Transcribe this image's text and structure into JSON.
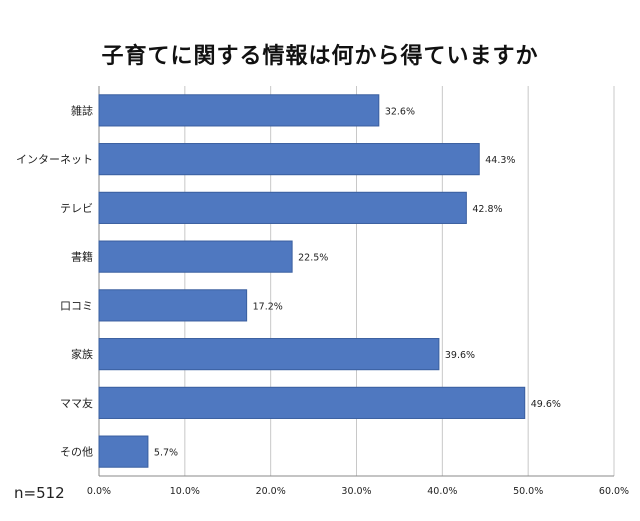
{
  "chart_data": {
    "type": "bar",
    "orientation": "horizontal",
    "title": "子育てに関する情報は何から得ていますか",
    "categories": [
      "雑誌",
      "インターネット",
      "テレビ",
      "書籍",
      "口コミ",
      "家族",
      "ママ友",
      "その他"
    ],
    "values": [
      32.6,
      44.3,
      42.8,
      22.5,
      17.2,
      39.6,
      49.6,
      5.7
    ],
    "value_labels": [
      "32.6%",
      "44.3%",
      "42.8%",
      "22.5%",
      "17.2%",
      "39.6%",
      "49.6%",
      "5.7%"
    ],
    "xlim": [
      0,
      60
    ],
    "xticks": [
      0,
      10,
      20,
      30,
      40,
      50,
      60
    ],
    "xtick_labels": [
      "0.0%",
      "10.0%",
      "20.0%",
      "30.0%",
      "40.0%",
      "50.0%",
      "60.0%"
    ],
    "grid": true,
    "bar_color": "#4f78c0",
    "sample_note": "n=512"
  }
}
